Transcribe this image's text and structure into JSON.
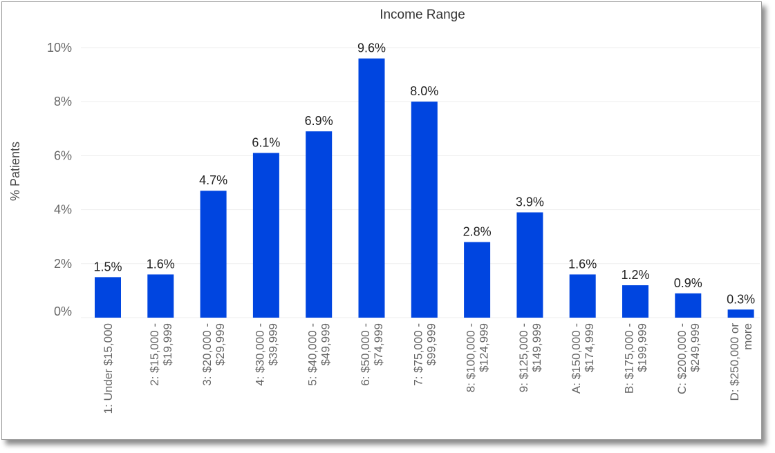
{
  "chart_data": {
    "type": "bar",
    "title": "Income Range",
    "xlabel": "",
    "ylabel": "% Patients",
    "ylim": [
      0,
      10.5
    ],
    "yticks": [
      "0%",
      "2%",
      "4%",
      "6%",
      "8%",
      "10%"
    ],
    "ytick_values": [
      0,
      2,
      4,
      6,
      8,
      10
    ],
    "categories": [
      "1: Under $15,000",
      "2: $15,000 - $19,999",
      "3: $20,000 - $29,999",
      "4: $30,000 - $39,999",
      "5: $40,000 - $49,999",
      "6: $50,000 - $74,999",
      "7: $75,000 - $99,999",
      "8: $100,000 - $124,999",
      "9: $125,000 - $149,999",
      "A: $150,000 - $174,999",
      "B: $175,000 - $199,999",
      "C: $200,000 - $249,999",
      "D: $250,000 or more"
    ],
    "category_lines": [
      [
        "1: Under $15,000"
      ],
      [
        "2: $15,000 -",
        "$19,999"
      ],
      [
        "3: $20,000 -",
        "$29,999"
      ],
      [
        "4: $30,000 -",
        "$39,999"
      ],
      [
        "5: $40,000 -",
        "$49,999"
      ],
      [
        "6: $50,000 -",
        "$74,999"
      ],
      [
        "7: $75,000 -",
        "$99,999"
      ],
      [
        "8: $100,000 -",
        "$124,999"
      ],
      [
        "9: $125,000 -",
        "$149,999"
      ],
      [
        "A: $150,000 -",
        "$174,999"
      ],
      [
        "B: $175,000 -",
        "$199,999"
      ],
      [
        "C: $200,000 -",
        "$249,999"
      ],
      [
        "D: $250,000 or",
        "more"
      ]
    ],
    "values": [
      1.5,
      1.6,
      4.7,
      6.1,
      6.9,
      9.6,
      8.0,
      2.8,
      3.9,
      1.6,
      1.2,
      0.9,
      0.3
    ],
    "data_labels": [
      "1.5%",
      "1.6%",
      "4.7%",
      "6.1%",
      "6.9%",
      "9.6%",
      "8.0%",
      "2.8%",
      "3.9%",
      "1.6%",
      "1.2%",
      "0.9%",
      "0.3%"
    ],
    "bar_color": "#0045e0",
    "grid": true,
    "legend": "none"
  }
}
